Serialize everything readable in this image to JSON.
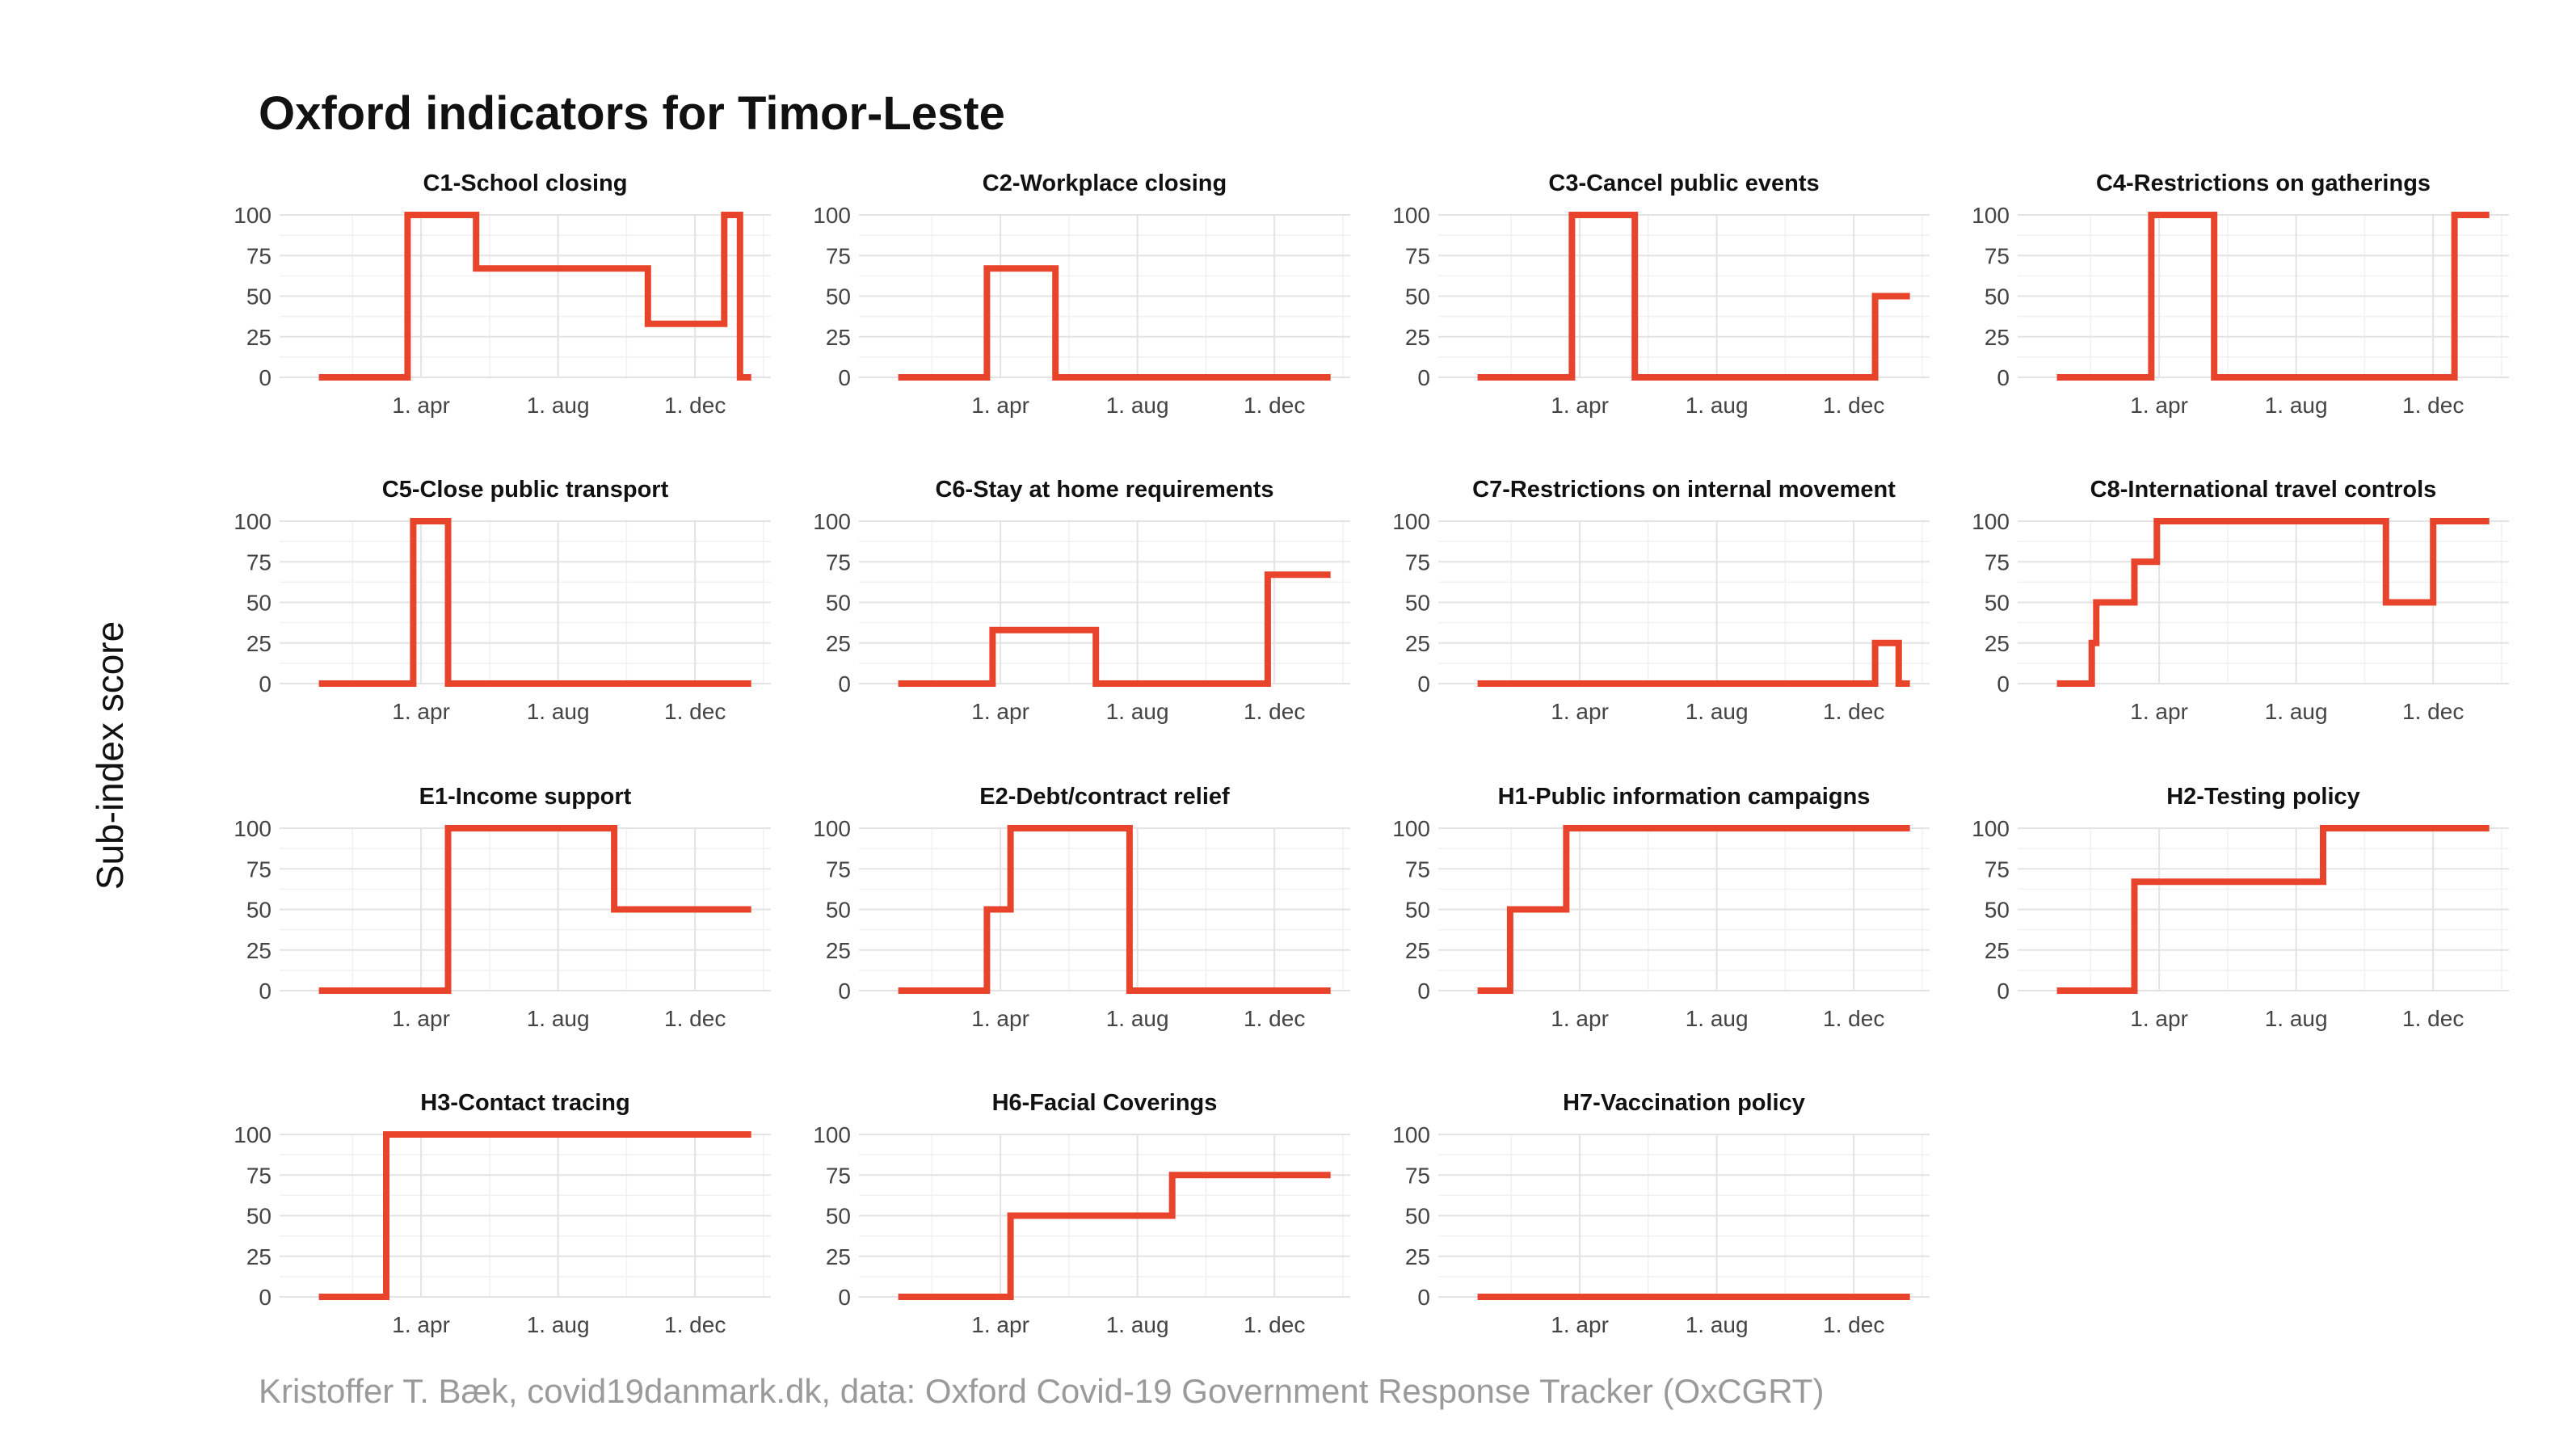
{
  "title": "Oxford indicators for Timor-Leste",
  "ylabel": "Sub-index score",
  "caption": "Kristoffer T. Bæk, covid19danmark.dk, data: Oxford Covid-19 Government Response Tracker (OxCGRT)",
  "colors": {
    "line": "#e8442b",
    "grid": "#e3e3e3",
    "text": "#111111",
    "caption": "#9a9a9a"
  },
  "chart_data": {
    "type": "line",
    "layout": "facet-grid 4x4",
    "x_unit": "date",
    "xlim": [
      "2020-01-01",
      "2021-01-20"
    ],
    "ylim": [
      0,
      100
    ],
    "yticks": [
      0,
      25,
      50,
      75,
      100
    ],
    "xticks": [
      {
        "date": "2020-04-01",
        "label": "1. apr"
      },
      {
        "date": "2020-08-01",
        "label": "1. aug"
      },
      {
        "date": "2020-12-01",
        "label": "1. dec"
      }
    ],
    "panels": [
      {
        "title": "C1-School closing",
        "points": [
          [
            "2020-01-01",
            0
          ],
          [
            "2020-03-20",
            0
          ],
          [
            "2020-03-20",
            100
          ],
          [
            "2020-05-20",
            100
          ],
          [
            "2020-05-20",
            67
          ],
          [
            "2020-10-20",
            67
          ],
          [
            "2020-10-20",
            33
          ],
          [
            "2020-12-27",
            33
          ],
          [
            "2020-12-27",
            100
          ],
          [
            "2021-01-10",
            100
          ],
          [
            "2021-01-10",
            0
          ],
          [
            "2021-01-20",
            0
          ]
        ]
      },
      {
        "title": "C2-Workplace closing",
        "points": [
          [
            "2020-01-01",
            0
          ],
          [
            "2020-03-20",
            0
          ],
          [
            "2020-03-20",
            67
          ],
          [
            "2020-05-20",
            67
          ],
          [
            "2020-05-20",
            0
          ],
          [
            "2021-01-20",
            0
          ]
        ]
      },
      {
        "title": "C3-Cancel public events",
        "points": [
          [
            "2020-01-01",
            0
          ],
          [
            "2020-03-25",
            0
          ],
          [
            "2020-03-25",
            100
          ],
          [
            "2020-05-20",
            100
          ],
          [
            "2020-05-20",
            0
          ],
          [
            "2020-12-20",
            0
          ],
          [
            "2020-12-20",
            50
          ],
          [
            "2021-01-20",
            50
          ]
        ]
      },
      {
        "title": "C4-Restrictions on gatherings",
        "points": [
          [
            "2020-01-01",
            0
          ],
          [
            "2020-03-25",
            0
          ],
          [
            "2020-03-25",
            100
          ],
          [
            "2020-05-20",
            100
          ],
          [
            "2020-05-20",
            0
          ],
          [
            "2020-12-20",
            0
          ],
          [
            "2020-12-20",
            100
          ],
          [
            "2021-01-20",
            100
          ]
        ]
      },
      {
        "title": "C5-Close public transport",
        "points": [
          [
            "2020-01-01",
            0
          ],
          [
            "2020-03-25",
            0
          ],
          [
            "2020-03-25",
            100
          ],
          [
            "2020-04-25",
            100
          ],
          [
            "2020-04-25",
            0
          ],
          [
            "2021-01-20",
            0
          ]
        ]
      },
      {
        "title": "C6-Stay at home requirements",
        "points": [
          [
            "2020-01-01",
            0
          ],
          [
            "2020-03-25",
            0
          ],
          [
            "2020-03-25",
            33
          ],
          [
            "2020-06-25",
            33
          ],
          [
            "2020-06-25",
            0
          ],
          [
            "2020-11-25",
            0
          ],
          [
            "2020-11-25",
            67
          ],
          [
            "2021-01-20",
            67
          ]
        ]
      },
      {
        "title": "C7-Restrictions on internal movement",
        "points": [
          [
            "2020-01-01",
            0
          ],
          [
            "2020-12-20",
            0
          ],
          [
            "2020-12-20",
            25
          ],
          [
            "2021-01-10",
            25
          ],
          [
            "2021-01-10",
            0
          ],
          [
            "2021-01-20",
            0
          ]
        ]
      },
      {
        "title": "C8-International travel controls",
        "points": [
          [
            "2020-01-01",
            0
          ],
          [
            "2020-02-01",
            0
          ],
          [
            "2020-02-01",
            25
          ],
          [
            "2020-02-05",
            25
          ],
          [
            "2020-02-05",
            50
          ],
          [
            "2020-03-10",
            50
          ],
          [
            "2020-03-10",
            75
          ],
          [
            "2020-03-30",
            75
          ],
          [
            "2020-03-30",
            100
          ],
          [
            "2020-10-20",
            100
          ],
          [
            "2020-10-20",
            50
          ],
          [
            "2020-12-01",
            50
          ],
          [
            "2020-12-01",
            100
          ],
          [
            "2021-01-20",
            100
          ]
        ]
      },
      {
        "title": "E1-Income support",
        "points": [
          [
            "2020-01-01",
            0
          ],
          [
            "2020-04-25",
            0
          ],
          [
            "2020-04-25",
            100
          ],
          [
            "2020-09-20",
            100
          ],
          [
            "2020-09-20",
            50
          ],
          [
            "2021-01-20",
            50
          ]
        ]
      },
      {
        "title": "E2-Debt/contract relief",
        "points": [
          [
            "2020-01-01",
            0
          ],
          [
            "2020-03-20",
            0
          ],
          [
            "2020-03-20",
            50
          ],
          [
            "2020-04-10",
            50
          ],
          [
            "2020-04-10",
            100
          ],
          [
            "2020-07-25",
            100
          ],
          [
            "2020-07-25",
            0
          ],
          [
            "2021-01-20",
            0
          ]
        ]
      },
      {
        "title": "H1-Public information campaigns",
        "points": [
          [
            "2020-01-01",
            0
          ],
          [
            "2020-01-30",
            0
          ],
          [
            "2020-01-30",
            50
          ],
          [
            "2020-03-20",
            50
          ],
          [
            "2020-03-20",
            100
          ],
          [
            "2021-01-20",
            100
          ]
        ]
      },
      {
        "title": "H2-Testing policy",
        "points": [
          [
            "2020-01-01",
            0
          ],
          [
            "2020-03-10",
            0
          ],
          [
            "2020-03-10",
            67
          ],
          [
            "2020-08-25",
            67
          ],
          [
            "2020-08-25",
            100
          ],
          [
            "2021-01-20",
            100
          ]
        ]
      },
      {
        "title": "H3-Contact tracing",
        "points": [
          [
            "2020-01-01",
            0
          ],
          [
            "2020-03-01",
            0
          ],
          [
            "2020-03-01",
            100
          ],
          [
            "2021-01-20",
            100
          ]
        ]
      },
      {
        "title": "H6-Facial Coverings",
        "points": [
          [
            "2020-01-01",
            0
          ],
          [
            "2020-04-10",
            0
          ],
          [
            "2020-04-10",
            50
          ],
          [
            "2020-09-01",
            50
          ],
          [
            "2020-09-01",
            75
          ],
          [
            "2021-01-20",
            75
          ]
        ]
      },
      {
        "title": "H7-Vaccination policy",
        "points": [
          [
            "2020-01-01",
            0
          ],
          [
            "2021-01-20",
            0
          ]
        ]
      }
    ]
  }
}
